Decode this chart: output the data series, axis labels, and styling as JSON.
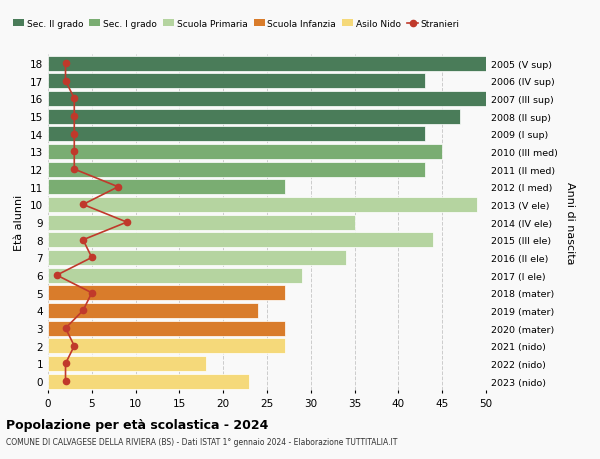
{
  "ages": [
    0,
    1,
    2,
    3,
    4,
    5,
    6,
    7,
    8,
    9,
    10,
    11,
    12,
    13,
    14,
    15,
    16,
    17,
    18
  ],
  "years": [
    "2023 (nido)",
    "2022 (nido)",
    "2021 (nido)",
    "2020 (mater)",
    "2019 (mater)",
    "2018 (mater)",
    "2017 (I ele)",
    "2016 (II ele)",
    "2015 (III ele)",
    "2014 (IV ele)",
    "2013 (V ele)",
    "2012 (I med)",
    "2011 (II med)",
    "2010 (III med)",
    "2009 (I sup)",
    "2008 (II sup)",
    "2007 (III sup)",
    "2006 (IV sup)",
    "2005 (V sup)"
  ],
  "bar_values": [
    23,
    18,
    27,
    27,
    24,
    27,
    29,
    34,
    44,
    35,
    49,
    27,
    43,
    45,
    43,
    47,
    50,
    43,
    50
  ],
  "bar_colors": [
    "#f5d97a",
    "#f5d97a",
    "#f5d97a",
    "#d97c2b",
    "#d97c2b",
    "#d97c2b",
    "#b5d4a0",
    "#b5d4a0",
    "#b5d4a0",
    "#b5d4a0",
    "#b5d4a0",
    "#7aad72",
    "#7aad72",
    "#7aad72",
    "#4a7c59",
    "#4a7c59",
    "#4a7c59",
    "#4a7c59",
    "#4a7c59"
  ],
  "stranieri_values": [
    2,
    2,
    3,
    2,
    4,
    5,
    1,
    5,
    4,
    9,
    4,
    8,
    3,
    3,
    3,
    3,
    3,
    2,
    2
  ],
  "legend_labels": [
    "Sec. II grado",
    "Sec. I grado",
    "Scuola Primaria",
    "Scuola Infanzia",
    "Asilo Nido",
    "Stranieri"
  ],
  "legend_colors": [
    "#4a7c59",
    "#7aad72",
    "#b5d4a0",
    "#d97c2b",
    "#f5d97a",
    "#c0392b"
  ],
  "title": "Popolazione per età scolastica - 2024",
  "subtitle": "COMUNE DI CALVAGESE DELLA RIVIERA (BS) - Dati ISTAT 1° gennaio 2024 - Elaborazione TUTTITALIA.IT",
  "ylabel_left": "Età alunni",
  "ylabel_right": "Anni di nascita",
  "xlim": [
    0,
    50
  ],
  "bg_color": "#f9f9f9",
  "stranieri_color": "#c0392b",
  "grid_color": "#cccccc"
}
